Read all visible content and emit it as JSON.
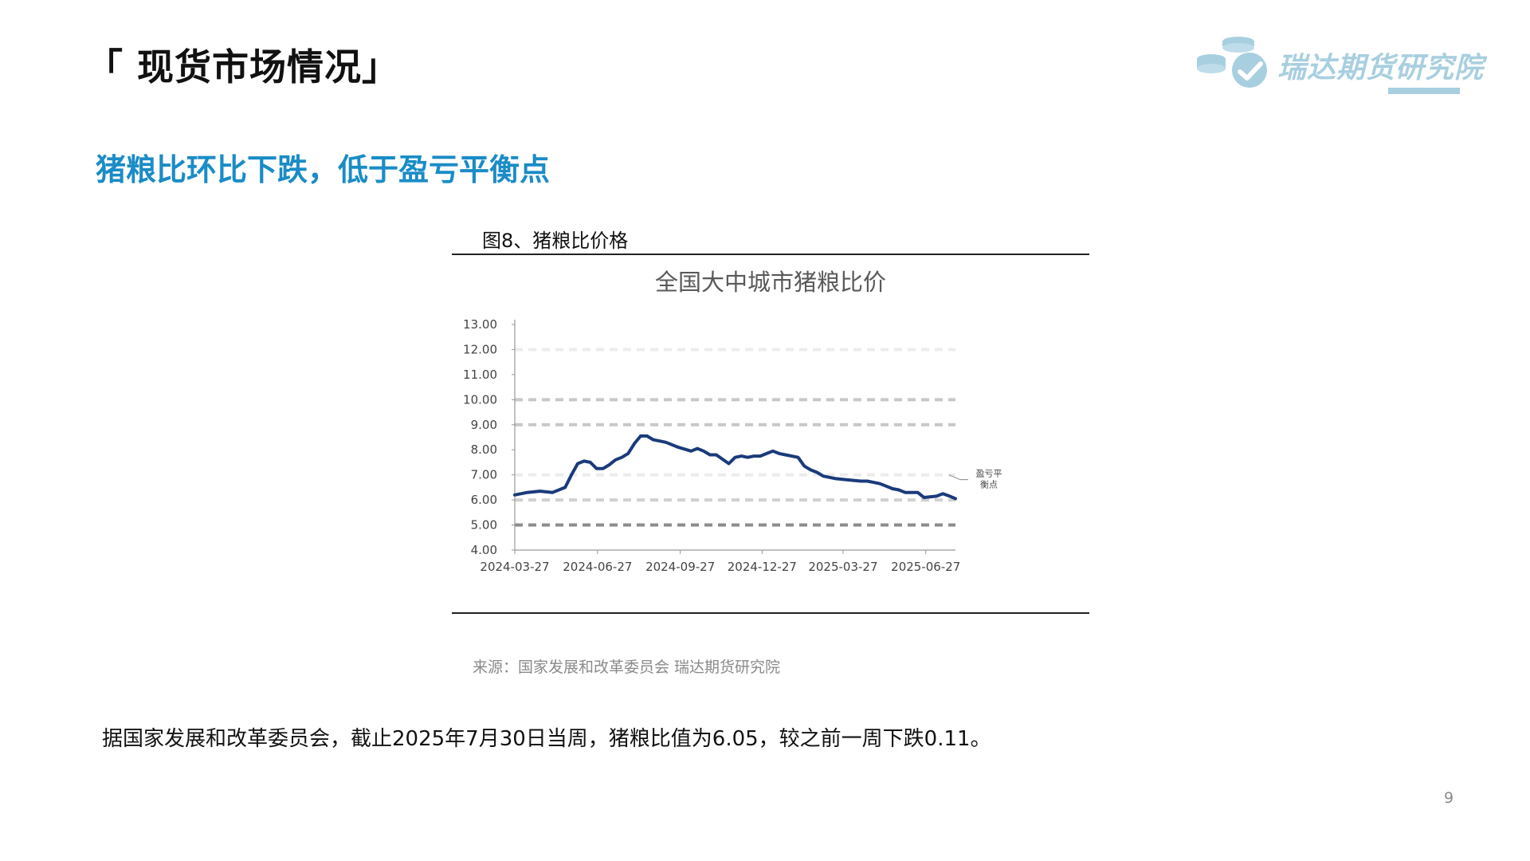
{
  "header": {
    "title": "「 现货市场情况」",
    "logo_text": "瑞达期货研究院"
  },
  "subtitle": "猪粮比环比下跌，低于盈亏平衡点",
  "figure": {
    "caption": "图8、猪粮比价格",
    "source": "来源：国家发展和改革委员会  瑞达期货研究院"
  },
  "body_text": "据国家发展和改革委员会，截止2025年7月30日当周，猪粮比值为6.05，较之前一周下跌0.11。",
  "page_number": "9",
  "colors": {
    "subtitle": "#1a8cc6",
    "series": "#1a3a7a",
    "logo": "#a8cfe0"
  },
  "chart_data": {
    "type": "line",
    "title": "全国大中城市猪粮比价",
    "xlabel": "",
    "ylabel": "",
    "x_tick_labels": [
      "2024-03-27",
      "2024-06-27",
      "2024-09-27",
      "2024-12-27",
      "2025-03-27",
      "2025-06-27"
    ],
    "y_tick_labels": [
      "4.00",
      "5.00",
      "6.00",
      "7.00",
      "8.00",
      "9.00",
      "10.00",
      "11.00",
      "12.00",
      "13.00"
    ],
    "ylim": [
      4,
      13
    ],
    "xlim": [
      "2024-03-27",
      "2025-07-30"
    ],
    "grid": false,
    "annotation": "盈亏平衡点",
    "reference_lines": [
      {
        "y": 5,
        "color": "#8c8c8c"
      },
      {
        "y": 6,
        "color": "#d0d0d0"
      },
      {
        "y": 7,
        "color": "#ececec"
      },
      {
        "y": 9,
        "color": "#c8c8c8"
      },
      {
        "y": 10,
        "color": "#c8c8c8"
      },
      {
        "y": 12,
        "color": "#ececec"
      }
    ],
    "series": [
      {
        "name": "",
        "x": [
          "2024-03-27",
          "2024-04-10",
          "2024-04-24",
          "2024-05-08",
          "2024-05-22",
          "2024-05-29",
          "2024-06-05",
          "2024-06-12",
          "2024-06-19",
          "2024-06-26",
          "2024-07-03",
          "2024-07-10",
          "2024-07-17",
          "2024-07-24",
          "2024-07-31",
          "2024-08-07",
          "2024-08-14",
          "2024-08-21",
          "2024-08-28",
          "2024-09-11",
          "2024-09-25",
          "2024-10-09",
          "2024-10-16",
          "2024-10-23",
          "2024-10-30",
          "2024-11-06",
          "2024-11-20",
          "2024-11-27",
          "2024-12-04",
          "2024-12-11",
          "2024-12-18",
          "2024-12-25",
          "2025-01-01",
          "2025-01-08",
          "2025-01-15",
          "2025-01-22",
          "2025-02-05",
          "2025-02-12",
          "2025-02-19",
          "2025-02-26",
          "2025-03-05",
          "2025-03-19",
          "2025-04-02",
          "2025-04-16",
          "2025-04-23",
          "2025-04-30",
          "2025-05-07",
          "2025-05-14",
          "2025-05-21",
          "2025-05-28",
          "2025-06-04",
          "2025-06-11",
          "2025-06-18",
          "2025-06-25",
          "2025-07-09",
          "2025-07-16",
          "2025-07-23",
          "2025-07-30"
        ],
        "y": [
          6.2,
          6.3,
          6.35,
          6.3,
          6.5,
          7.0,
          7.45,
          7.55,
          7.5,
          7.25,
          7.25,
          7.4,
          7.6,
          7.7,
          7.85,
          8.25,
          8.55,
          8.55,
          8.4,
          8.3,
          8.1,
          7.95,
          8.05,
          7.95,
          7.8,
          7.8,
          7.45,
          7.7,
          7.75,
          7.7,
          7.75,
          7.75,
          7.85,
          7.95,
          7.85,
          7.8,
          7.7,
          7.35,
          7.2,
          7.1,
          6.95,
          6.85,
          6.8,
          6.75,
          6.75,
          6.7,
          6.65,
          6.55,
          6.45,
          6.4,
          6.3,
          6.3,
          6.3,
          6.1,
          6.15,
          6.25,
          6.16,
          6.05
        ]
      }
    ]
  }
}
